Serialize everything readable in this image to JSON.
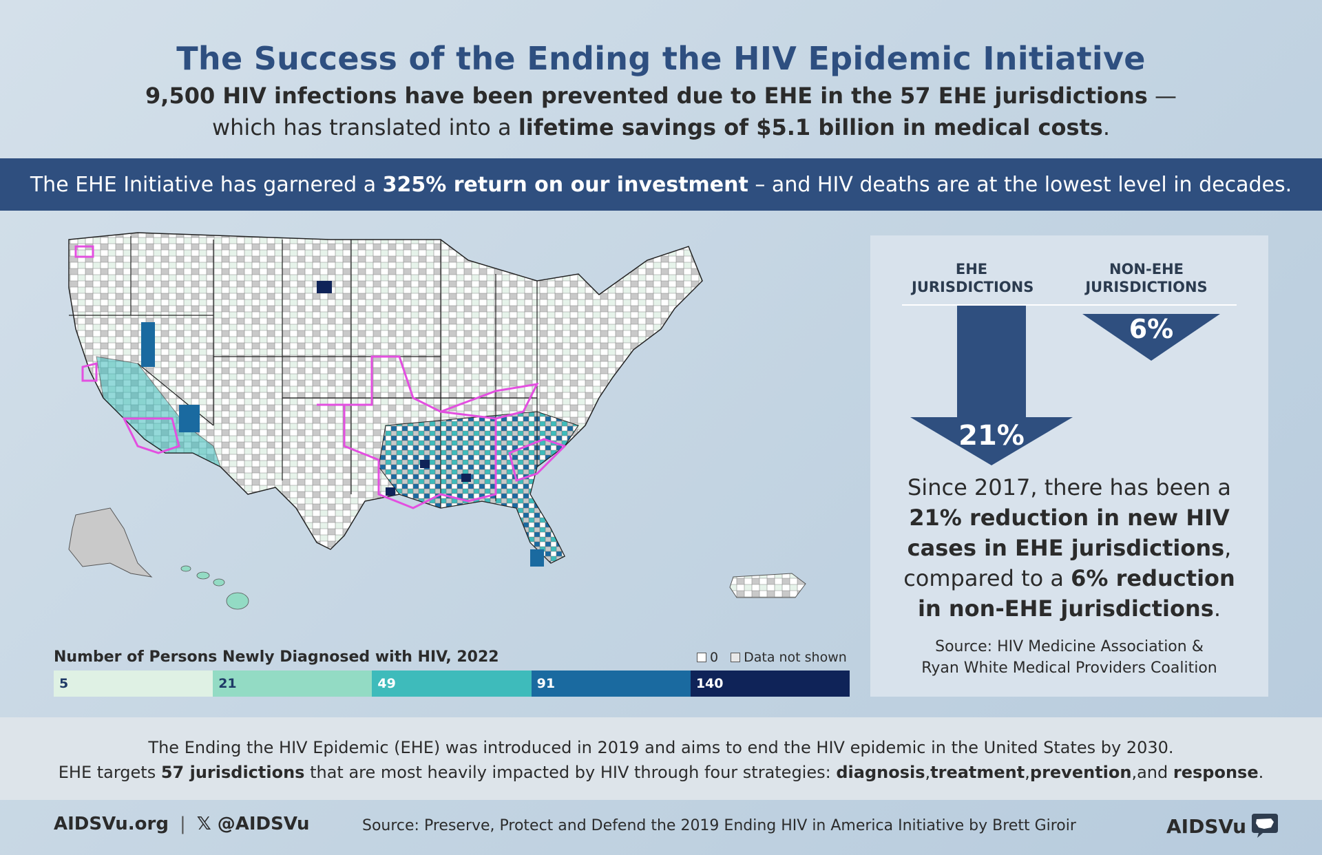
{
  "header": {
    "title": "The Success of the Ending the HIV Epidemic Initiative",
    "line1_bold": "9,500 HIV infections have been prevented due to EHE in the 57 EHE jurisdictions",
    "line1_rest": " —",
    "line2_pre": "which has translated into a ",
    "line2_bold": "lifetime savings of $5.1 billion in medical costs",
    "line2_post": "."
  },
  "band": {
    "pre": "The EHE Initiative has garnered a ",
    "bold": "325% return on our investment",
    "post": " – and HIV deaths are at the lowest level in decades."
  },
  "map": {
    "legend_title": "Number of Persons Newly Diagnosed with HIV, 2022",
    "key_zero": "0",
    "key_not_shown": "Data not shown",
    "scale": [
      {
        "label": "5",
        "color": "#dff1e4",
        "text_color": "#1f3a66"
      },
      {
        "label": "21",
        "color": "#93dbc4",
        "text_color": "#1f3a66"
      },
      {
        "label": "49",
        "color": "#3ebbbb",
        "text_color": "#ffffff"
      },
      {
        "label": "91",
        "color": "#1a6aa0",
        "text_color": "#ffffff"
      },
      {
        "label": "140",
        "color": "#0f2358",
        "text_color": "#ffffff"
      }
    ],
    "ehe_outline_color": "#e34fe0"
  },
  "panel": {
    "ehe_head_l1": "EHE",
    "ehe_head_l2": "JURISDICTIONS",
    "non_head_l1": "NON-EHE",
    "non_head_l2": "JURISDICTIONS",
    "ehe_pct": "21%",
    "non_pct": "6%",
    "t1": "Since 2017, there has been a",
    "t2": "21% reduction in new HIV",
    "t3": "cases in EHE jurisdictions",
    "t3_post": ",",
    "t4_pre": "compared to a ",
    "t4_bold": "6% reduction",
    "t5_bold": "in non-EHE jurisdictions",
    "t5_post": ".",
    "src1": "Source: HIV Medicine Association &",
    "src2": "Ryan White Medical Providers Coalition",
    "arrow_color": "#2f4f7f"
  },
  "footer": {
    "l1": "The Ending the HIV Epidemic (EHE) was introduced in 2019 and aims to end the HIV epidemic in the United States by 2030.",
    "l2_pre": "EHE targets ",
    "l2_b1": "57 jurisdictions",
    "l2_mid": " that are most heavily impacted by HIV through four strategies: ",
    "l2_b2": "diagnosis",
    "l2_c1": ",",
    "l2_b3": "treatment",
    "l2_c2": ",",
    "l2_b4": "prevention",
    "l2_c3": ",and ",
    "l2_b5": "response",
    "l2_end": ".",
    "site": "AIDSVu.org",
    "divider": "|",
    "handle": "𝕏 @AIDSVu",
    "source": "Source: Preserve, Protect and Defend the 2019 Ending HIV in America Initiative by Brett Giroir",
    "logo": "AIDSVu"
  }
}
